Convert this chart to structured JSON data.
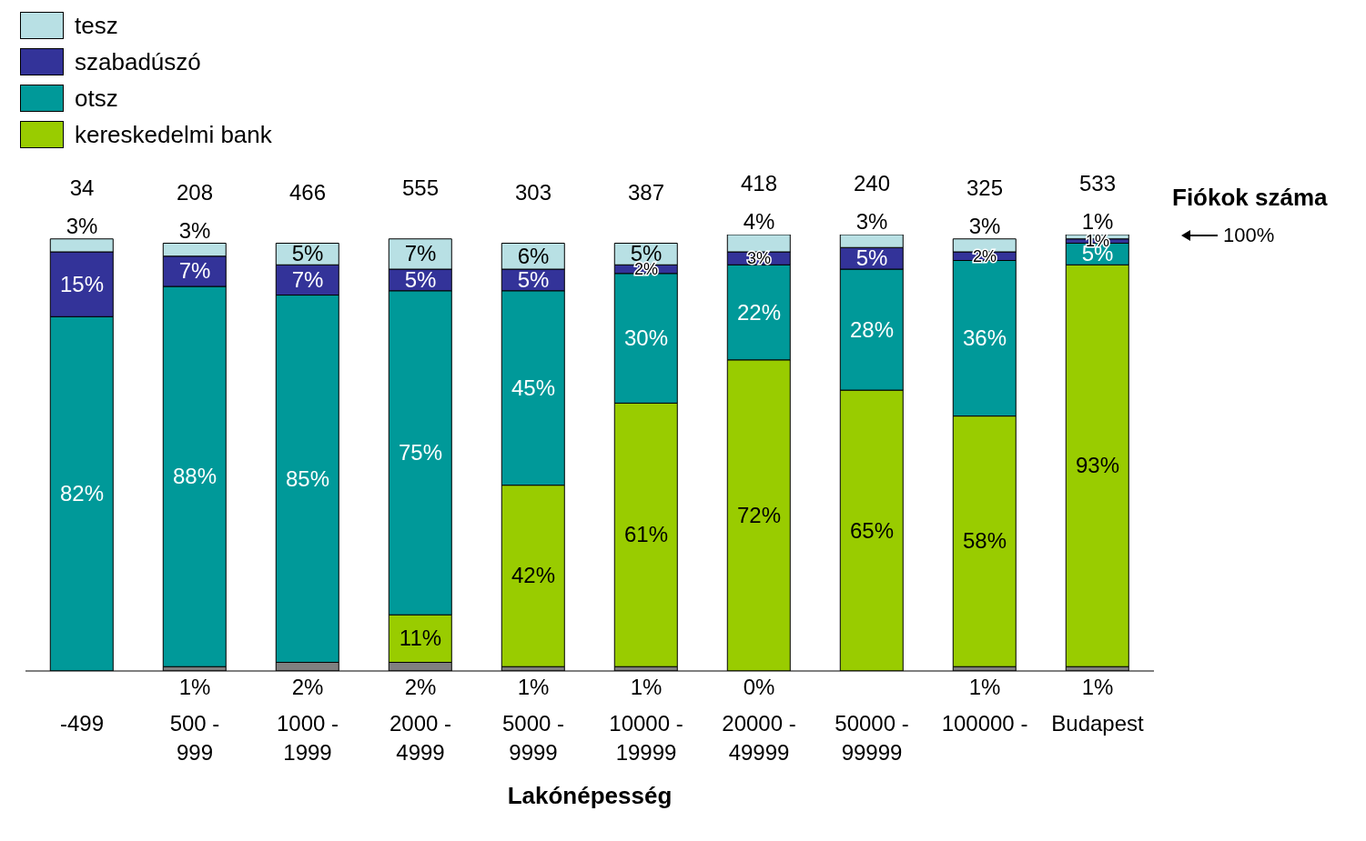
{
  "chart_data": {
    "type": "bar",
    "stacked": true,
    "xlabel": "Lakónépesség",
    "legend": "top left",
    "data_labels": true,
    "categories": [
      "-499",
      "500 - 999",
      "1000 - 1999",
      "2000 - 4999",
      "5000 - 9999",
      "10000 - 19999",
      "20000 - 49999",
      "50000 - 99999",
      "100000 -",
      "Budapest"
    ],
    "series": [
      {
        "color": "#808080",
        "values": [
          0,
          1,
          2,
          2,
          1,
          1,
          0,
          0,
          1,
          1
        ],
        "value_labels": [
          null,
          "1%",
          "2%",
          "2%",
          "1%",
          "1%",
          "0%",
          null,
          "1%",
          "1%"
        ]
      },
      {
        "name": "kereskedelmi bank",
        "color": "#99cc00",
        "values": [
          0,
          0,
          0,
          11,
          42,
          61,
          72,
          65,
          58,
          93
        ],
        "value_labels": [
          null,
          null,
          null,
          "11%",
          "42%",
          "61%",
          "72%",
          "65%",
          "58%",
          "93%"
        ]
      },
      {
        "name": "otsz",
        "color": "#009999",
        "values": [
          82,
          88,
          85,
          75,
          45,
          30,
          22,
          28,
          36,
          5
        ],
        "value_labels": [
          "82%",
          "88%",
          "85%",
          "75%",
          "45%",
          "30%",
          "22%",
          "28%",
          "36%",
          "5%"
        ]
      },
      {
        "name": "szabadúszó",
        "color": "#333399",
        "values": [
          15,
          7,
          7,
          5,
          5,
          2,
          3,
          5,
          2,
          1
        ],
        "value_labels": [
          "15%",
          "7%",
          "7%",
          "5%",
          "5%",
          "2%",
          "3%",
          "5%",
          "2%",
          "1%"
        ]
      },
      {
        "name": "tesz",
        "color": "#b8e0e4",
        "values": [
          3,
          3,
          5,
          7,
          6,
          5,
          4,
          3,
          3,
          1
        ],
        "value_labels": [
          "3%",
          "3%",
          "5%",
          "7%",
          "6%",
          "5%",
          "4%",
          "3%",
          "3%",
          "1%"
        ]
      }
    ],
    "annotations": [
      "Fiókok száma",
      "100%",
      "34",
      "208",
      "466",
      "555",
      "303",
      "387",
      "418",
      "240",
      "325",
      "533"
    ]
  }
}
